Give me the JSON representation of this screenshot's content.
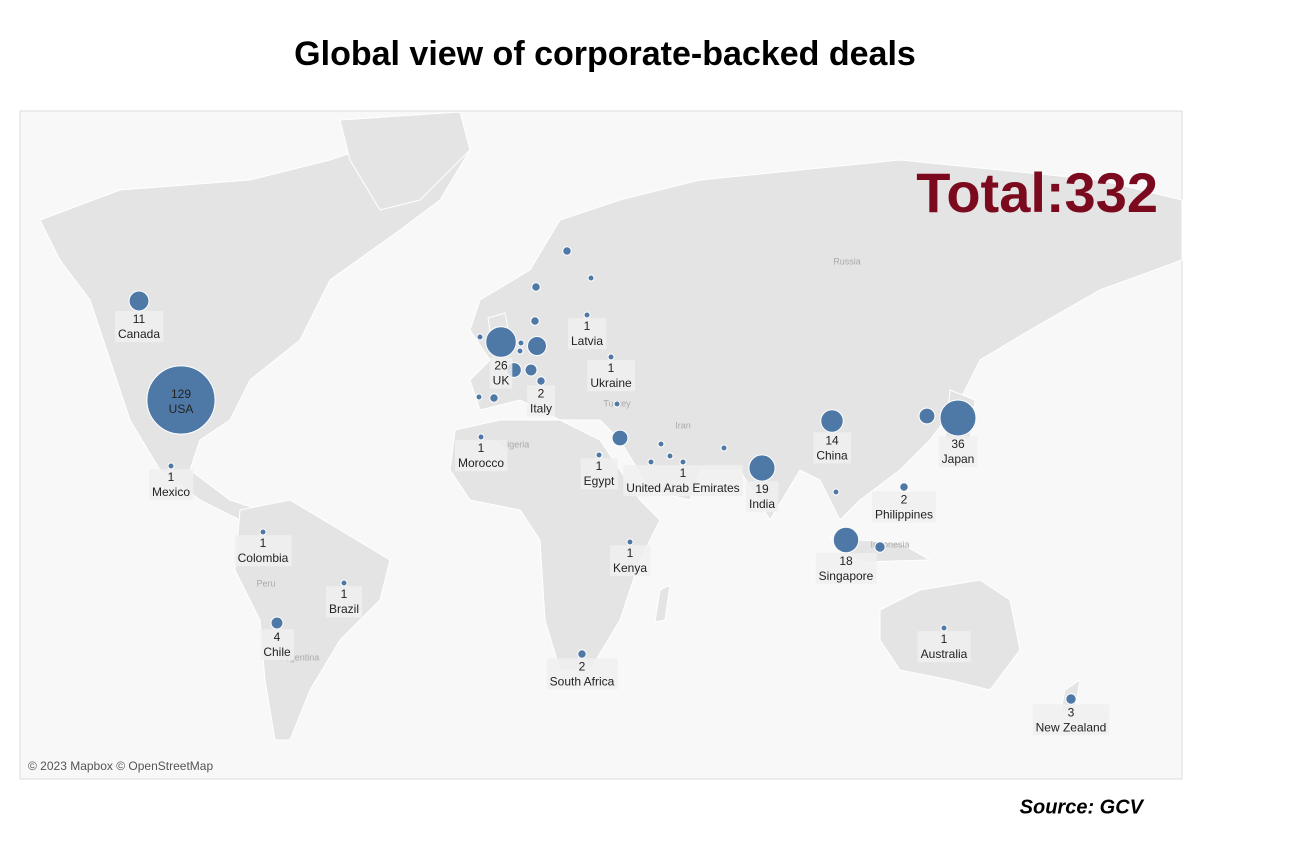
{
  "title": "Global view of corporate-backed deals",
  "total": "Total:332",
  "source": "Source: GCV",
  "attribution": "© 2023 Mapbox © OpenStreetMap",
  "basemap_labels": [
    "Russia",
    "Iran",
    "Nigeria",
    "Turkey",
    "Peru",
    "Argentina",
    "Indonesia"
  ],
  "bubble_color": "#4e79a7",
  "labeled_points": [
    {
      "name": "USA",
      "value": 129
    },
    {
      "name": "Canada",
      "value": 11
    },
    {
      "name": "Mexico",
      "value": 1
    },
    {
      "name": "Colombia",
      "value": 1
    },
    {
      "name": "Brazil",
      "value": 1
    },
    {
      "name": "Chile",
      "value": 4
    },
    {
      "name": "Morocco",
      "value": 1
    },
    {
      "name": "UK",
      "value": 26
    },
    {
      "name": "Italy",
      "value": 2
    },
    {
      "name": "Latvia",
      "value": 1
    },
    {
      "name": "Ukraine",
      "value": 1
    },
    {
      "name": "Egypt",
      "value": 1
    },
    {
      "name": "United Arab Emirates",
      "value": 1
    },
    {
      "name": "Kenya",
      "value": 1
    },
    {
      "name": "South Africa",
      "value": 2
    },
    {
      "name": "India",
      "value": 19
    },
    {
      "name": "China",
      "value": 14
    },
    {
      "name": "Japan",
      "value": 36
    },
    {
      "name": "Philippines",
      "value": 2
    },
    {
      "name": "Singapore",
      "value": 18
    },
    {
      "name": "Australia",
      "value": 1
    },
    {
      "name": "New Zealand",
      "value": 3
    }
  ],
  "unlabeled_point_values": [
    10,
    6,
    1,
    1,
    4,
    2,
    1,
    1,
    2,
    2,
    2,
    1,
    7,
    1,
    1,
    1,
    1,
    1,
    7,
    1,
    3
  ]
}
